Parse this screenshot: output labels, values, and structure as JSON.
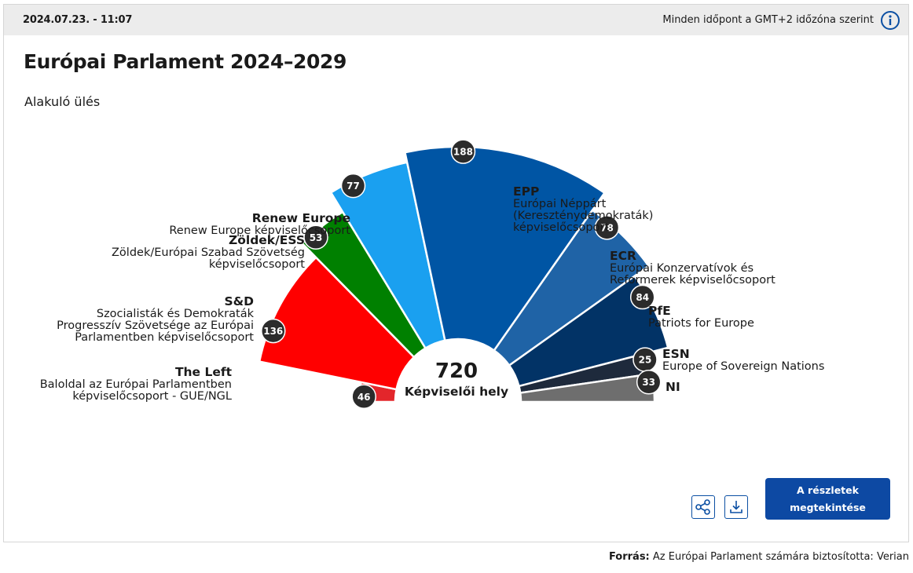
{
  "header": {
    "date": "2024.07.23. - 11:07",
    "timezone_note": "Minden időpont a GMT+2 időzóna szerint",
    "info_icon": "info-icon"
  },
  "title": "Európai Parlament 2024–2029",
  "subtitle": "Alakuló ülés",
  "chart_data": {
    "type": "pie",
    "layout": "hemicycle",
    "total": 720,
    "total_label": "Képviselői hely",
    "series": [
      {
        "abbr": "The Left",
        "name": "Baloldal az Európai Parlamentben képviselőcsoport - GUE/NGL",
        "name_lines": [
          "Baloldal az Európai Parlamentben",
          "képviselőcsoport - GUE/NGL"
        ],
        "seats": 46,
        "color": "#e3262b"
      },
      {
        "abbr": "S&D",
        "name": "Szocialisták és Demokraták Progresszív Szövetsége az Európai Parlamentben képviselőcsoport",
        "name_lines": [
          "Szocialisták és Demokraták",
          "Progresszív Szövetsége az Európai",
          "Parlamentben képviselőcsoport"
        ],
        "seats": 136,
        "color": "#ff0000"
      },
      {
        "abbr": "Zöldek/ESS",
        "name": "Zöldek/Európai Szabad Szövetség képviselőcsoport",
        "name_lines": [
          "Zöldek/Európai Szabad Szövetség",
          "képviselőcsoport"
        ],
        "seats": 53,
        "color": "#008000"
      },
      {
        "abbr": "Renew Europe",
        "name": "Renew Europe képviselőcsoport",
        "name_lines": [
          "Renew Europe képviselőcsoport"
        ],
        "seats": 77,
        "color": "#1aa0f0"
      },
      {
        "abbr": "EPP",
        "name": "Európai Néppárt (Kereszténydemokraták) képviselőcsoport",
        "name_lines": [
          "Európai Néppárt",
          "(Kereszténydemokraták)",
          "képviselőcsoport"
        ],
        "seats": 188,
        "color": "#0055a4"
      },
      {
        "abbr": "ECR",
        "name": "Európai Konzervatívok és Reformerek képviselőcsoport",
        "name_lines": [
          "Európai Konzervatívok és",
          "Reformerek képviselőcsoport"
        ],
        "seats": 78,
        "color": "#1f63a6"
      },
      {
        "abbr": "PfE",
        "name": "Patriots for Europe",
        "name_lines": [
          "Patriots for Europe"
        ],
        "seats": 84,
        "color": "#023366"
      },
      {
        "abbr": "ESN",
        "name": "Europe of Sovereign Nations",
        "name_lines": [
          "Europe of Sovereign Nations"
        ],
        "seats": 25,
        "color": "#1e2a3c"
      },
      {
        "abbr": "NI",
        "name": "",
        "name_lines": [],
        "seats": 33,
        "color": "#6e6e6e"
      }
    ]
  },
  "actions": {
    "share_icon": "share-icon",
    "download_icon": "download-icon",
    "details_label": "A részletek\nmegtekintése"
  },
  "source": {
    "label": "Forrás:",
    "text": "Az Európai Parlament számára biztosította: Verian"
  }
}
